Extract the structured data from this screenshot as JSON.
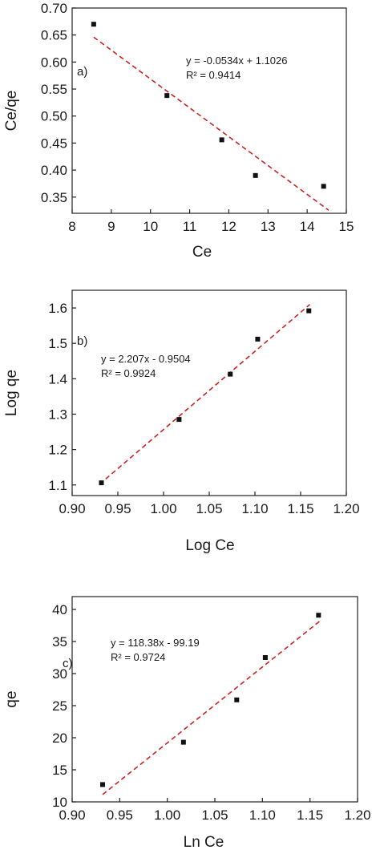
{
  "colors": {
    "points": "#111111",
    "fit_line": "#cc2222",
    "axes": "#222222"
  },
  "chart_data": [
    {
      "type": "scatter",
      "panel_label": "a)",
      "title": "",
      "xlabel": "Ce",
      "ylabel": "Ce/qe",
      "xlim": [
        8,
        15
      ],
      "ylim": [
        0.32,
        0.7
      ],
      "xticks": [
        8,
        9,
        10,
        11,
        12,
        13,
        14,
        15
      ],
      "yticks": [
        0.35,
        0.4,
        0.45,
        0.5,
        0.55,
        0.6,
        0.65,
        0.7
      ],
      "xtick_labels": [
        "8",
        "9",
        "10",
        "11",
        "12",
        "13",
        "14",
        "15"
      ],
      "ytick_labels": [
        "0.35",
        "0.40",
        "0.45",
        "0.50",
        "0.55",
        "0.60",
        "0.65",
        "0.70"
      ],
      "grid": false,
      "points": [
        {
          "x": 8.55,
          "y": 0.67
        },
        {
          "x": 10.42,
          "y": 0.538
        },
        {
          "x": 11.82,
          "y": 0.456
        },
        {
          "x": 12.68,
          "y": 0.39
        },
        {
          "x": 14.42,
          "y": 0.37
        }
      ],
      "fit": {
        "slope": -0.0534,
        "intercept": 1.1026,
        "x_range": [
          8.55,
          14.55
        ]
      },
      "equation": "y = -0.0534x + 1.1026",
      "r_squared": "R² = 0.9414"
    },
    {
      "type": "scatter",
      "panel_label": "b)",
      "title": "",
      "xlabel": "Log Ce",
      "ylabel": "Log qe",
      "xlim": [
        0.9,
        1.2
      ],
      "ylim": [
        1.07,
        1.65
      ],
      "xticks": [
        0.9,
        0.95,
        1.0,
        1.05,
        1.1,
        1.15,
        1.2
      ],
      "yticks": [
        1.1,
        1.2,
        1.3,
        1.4,
        1.5,
        1.6
      ],
      "xtick_labels": [
        "0.90",
        "0.95",
        "1.00",
        "1.05",
        "1.10",
        "1.15",
        "1.20"
      ],
      "ytick_labels": [
        "1.1",
        "1.2",
        "1.3",
        "1.4",
        "1.5",
        "1.6"
      ],
      "grid": false,
      "points": [
        {
          "x": 0.932,
          "y": 1.106
        },
        {
          "x": 1.017,
          "y": 1.285
        },
        {
          "x": 1.073,
          "y": 1.413
        },
        {
          "x": 1.103,
          "y": 1.512
        },
        {
          "x": 1.159,
          "y": 1.592
        }
      ],
      "fit": {
        "slope": 2.207,
        "intercept": -0.9504,
        "x_range": [
          0.93,
          1.16
        ]
      },
      "equation": "y = 2.207x - 0.9504",
      "r_squared": "R² = 0.9924"
    },
    {
      "type": "scatter",
      "panel_label": "c)",
      "title": "",
      "xlabel": "Ln Ce",
      "ylabel": "qe",
      "xlim": [
        0.9,
        1.2
      ],
      "ylim": [
        10,
        42
      ],
      "xticks": [
        0.9,
        0.95,
        1.0,
        1.05,
        1.1,
        1.15,
        1.2
      ],
      "yticks": [
        10,
        15,
        20,
        25,
        30,
        35,
        40
      ],
      "xtick_labels": [
        "0.90",
        "0.95",
        "1.00",
        "1.05",
        "1.10",
        "1.15",
        "1.20"
      ],
      "ytick_labels": [
        "10",
        "15",
        "20",
        "25",
        "30",
        "35",
        "40"
      ],
      "grid": false,
      "points": [
        {
          "x": 0.932,
          "y": 12.7
        },
        {
          "x": 1.017,
          "y": 19.3
        },
        {
          "x": 1.073,
          "y": 25.9
        },
        {
          "x": 1.103,
          "y": 32.5
        },
        {
          "x": 1.159,
          "y": 39.1
        }
      ],
      "fit": {
        "slope": 118.38,
        "intercept": -99.19,
        "x_range": [
          0.932,
          1.16
        ]
      },
      "equation": "y = 118.38x - 99.19",
      "r_squared": "R² = 0.9724"
    }
  ]
}
